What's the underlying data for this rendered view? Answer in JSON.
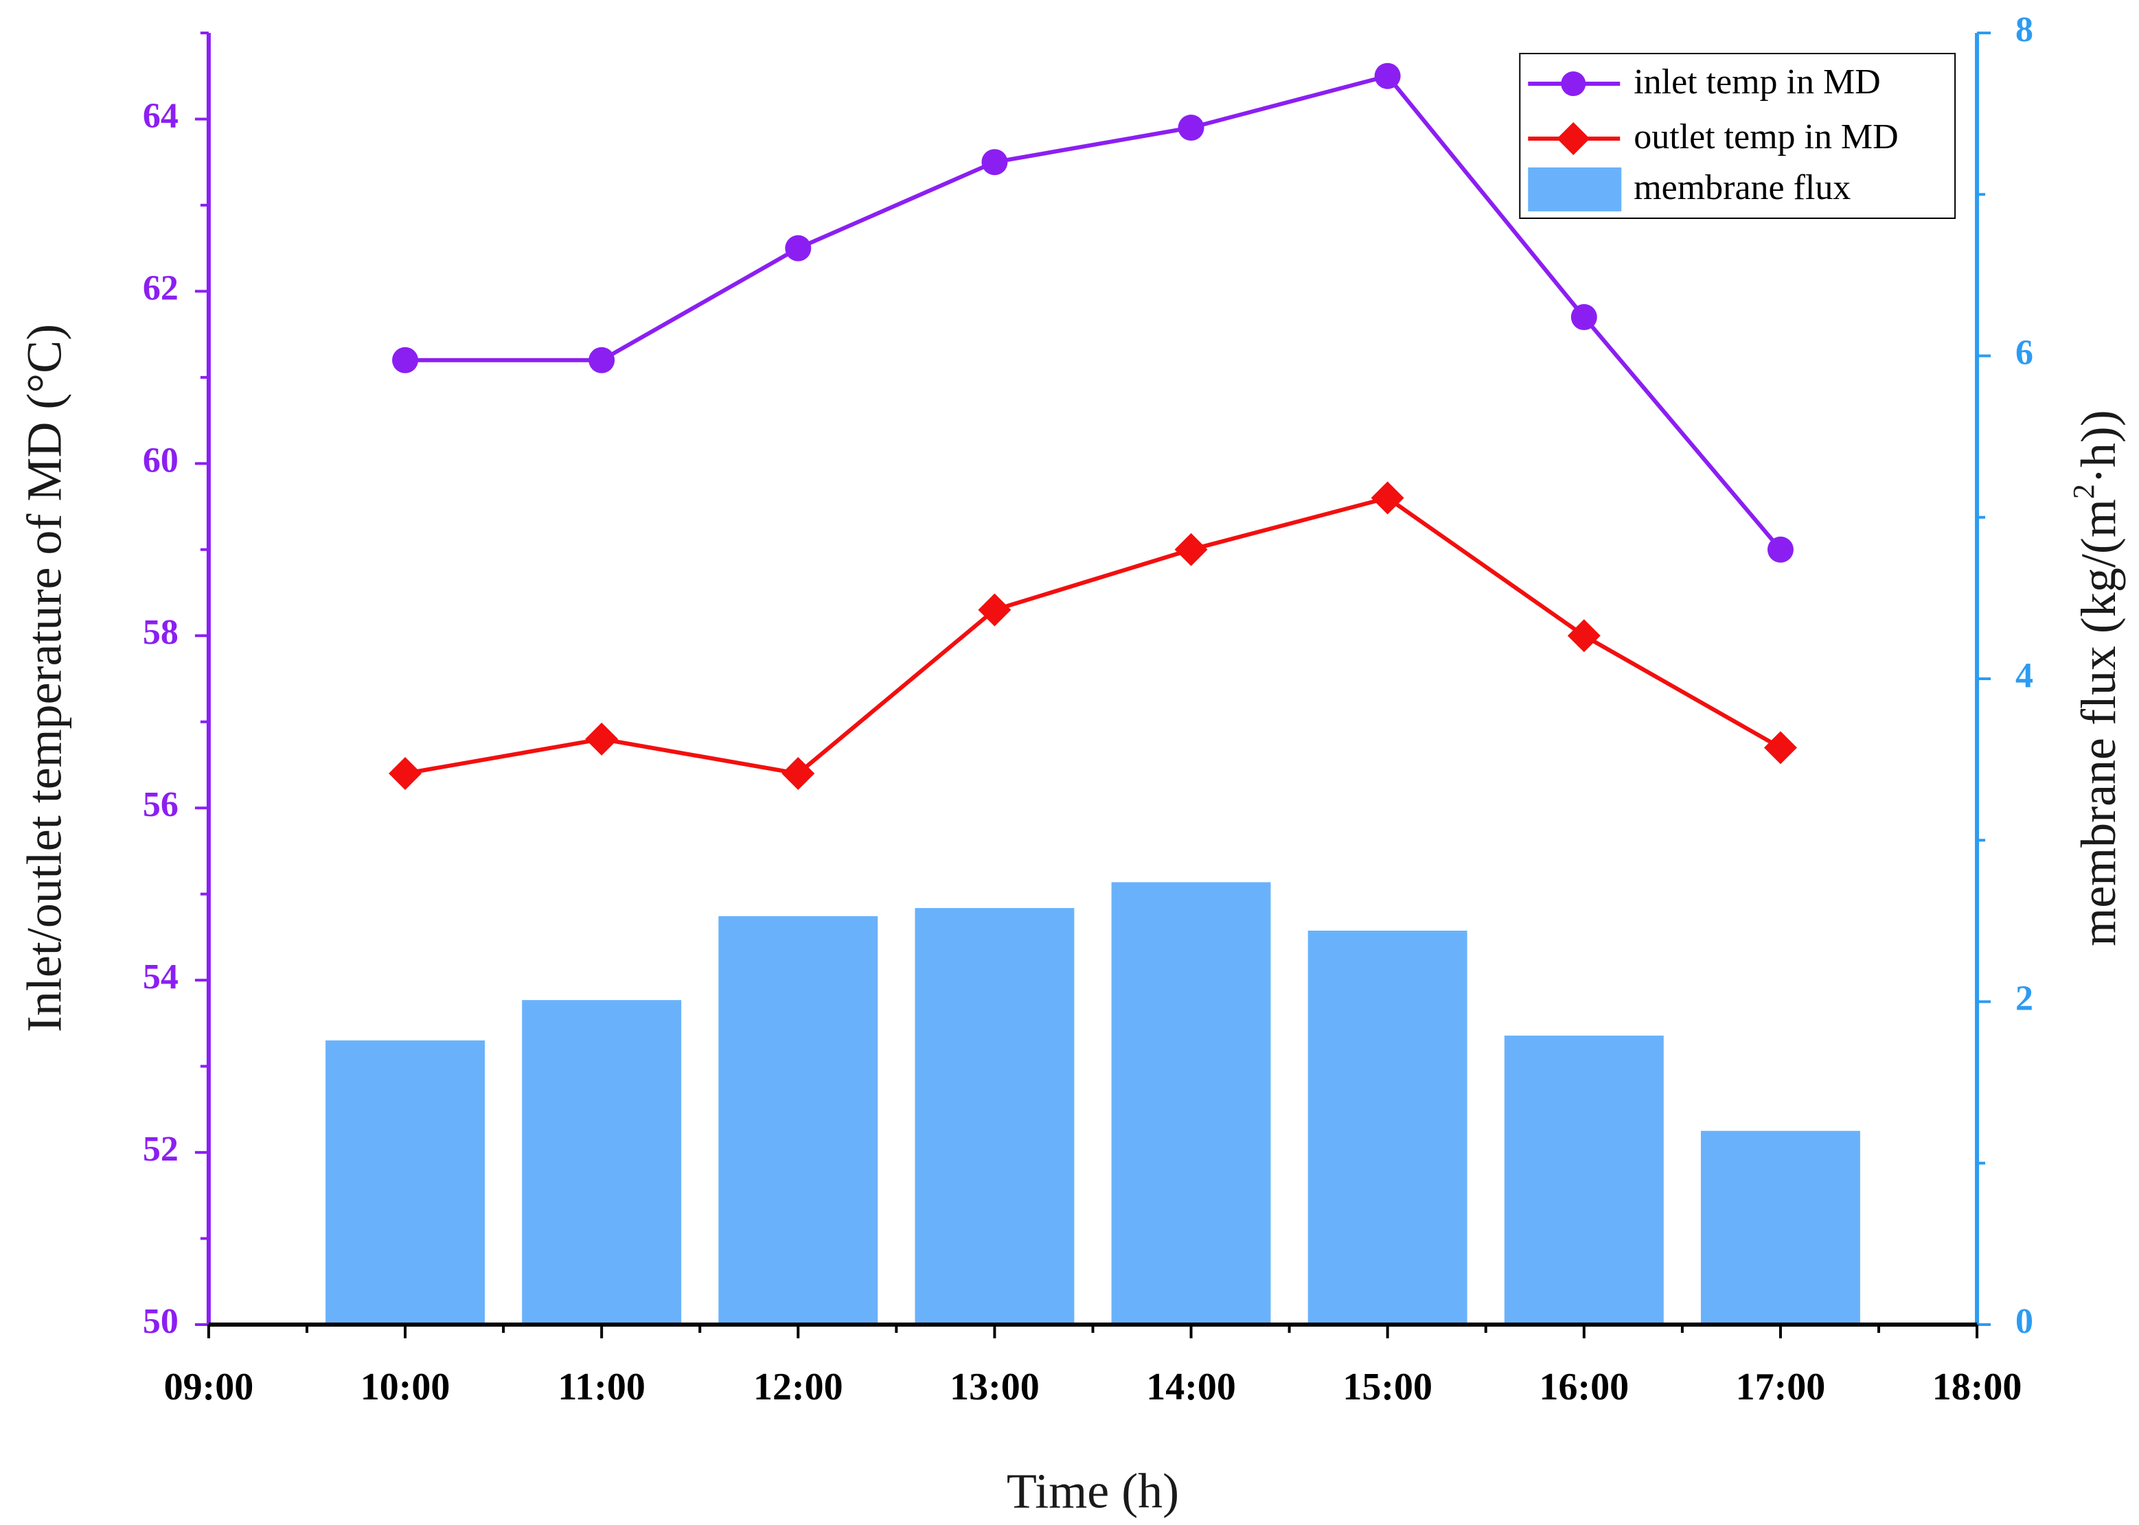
{
  "chart_data": {
    "type": "bar+line",
    "categories": [
      "10:00",
      "11:00",
      "12:00",
      "13:00",
      "14:00",
      "15:00",
      "16:00",
      "17:00"
    ],
    "x_tick_labels": [
      "09:00",
      "10:00",
      "11:00",
      "12:00",
      "13:00",
      "14:00",
      "15:00",
      "16:00",
      "17:00",
      "18:00"
    ],
    "xlabel": "Time (h)",
    "left_axis": {
      "label": "Inlet/outlet temperature of MD (°C)",
      "ylim": [
        50,
        65
      ],
      "ticks": [
        50,
        52,
        54,
        56,
        58,
        60,
        62,
        64
      ],
      "color": "#8b1ff2"
    },
    "right_axis": {
      "label_main": "membrane flux (kg/(m",
      "label_sup": "2",
      "label_end": "·h))",
      "ylim": [
        0,
        8
      ],
      "ticks": [
        0,
        2,
        4,
        6,
        8
      ],
      "color": "#2c9bf2"
    },
    "series": [
      {
        "name": "inlet temp in MD",
        "type": "line",
        "marker": "circle",
        "axis": "left",
        "color": "#8b1ff2",
        "values": [
          61.2,
          61.2,
          62.5,
          63.5,
          63.9,
          64.5,
          61.7,
          59.0
        ]
      },
      {
        "name": "outlet temp in MD",
        "type": "line",
        "marker": "diamond",
        "axis": "left",
        "color": "#f20f0f",
        "values": [
          56.4,
          56.8,
          56.4,
          58.3,
          59.0,
          59.6,
          58.0,
          56.7
        ]
      },
      {
        "name": "membrane flux",
        "type": "bar",
        "axis": "right",
        "color": "#69b2fb",
        "values": [
          1.76,
          2.01,
          2.53,
          2.58,
          2.74,
          2.44,
          1.79,
          1.2
        ]
      }
    ],
    "legend_position": "top-right"
  }
}
